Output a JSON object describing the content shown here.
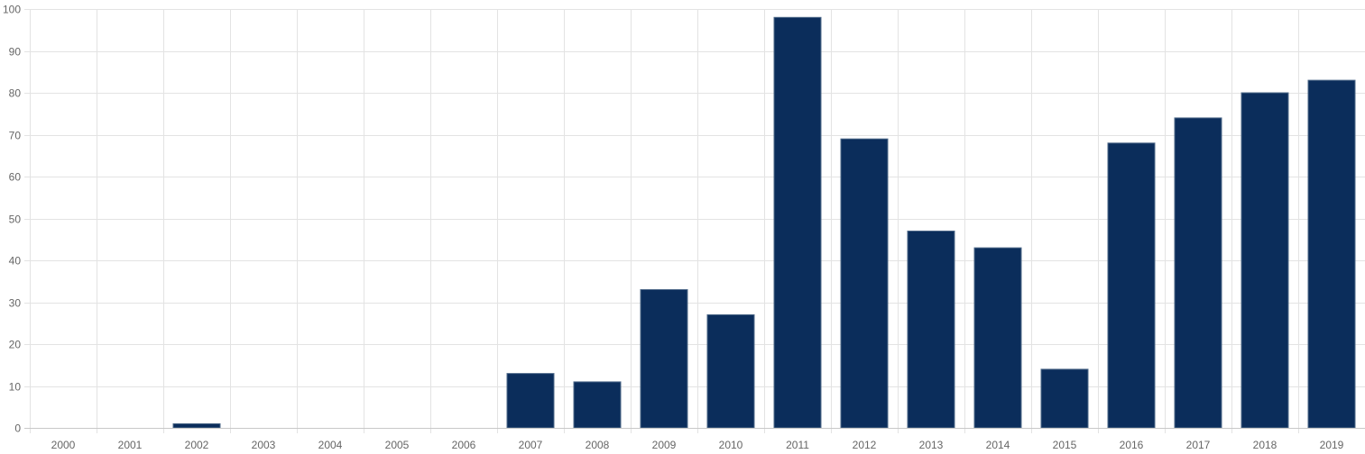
{
  "chart_data": {
    "type": "bar",
    "title": "",
    "xlabel": "",
    "ylabel": "",
    "categories": [
      "2000",
      "2001",
      "2002",
      "2003",
      "2004",
      "2005",
      "2006",
      "2007",
      "2008",
      "2009",
      "2010",
      "2011",
      "2012",
      "2013",
      "2014",
      "2015",
      "2016",
      "2017",
      "2018",
      "2019"
    ],
    "values": [
      0,
      0,
      1,
      0,
      0,
      0,
      0,
      13,
      11,
      33,
      27,
      98,
      69,
      47,
      43,
      14,
      68,
      74,
      80,
      83
    ],
    "ylim": [
      0,
      100
    ],
    "yticks": [
      0,
      10,
      20,
      30,
      40,
      50,
      60,
      70,
      80,
      90,
      100
    ],
    "grid": true,
    "legend": "none",
    "colors": {
      "bar_fill": "#0b2d5b",
      "bar_stroke": "#4f6a8a"
    }
  }
}
